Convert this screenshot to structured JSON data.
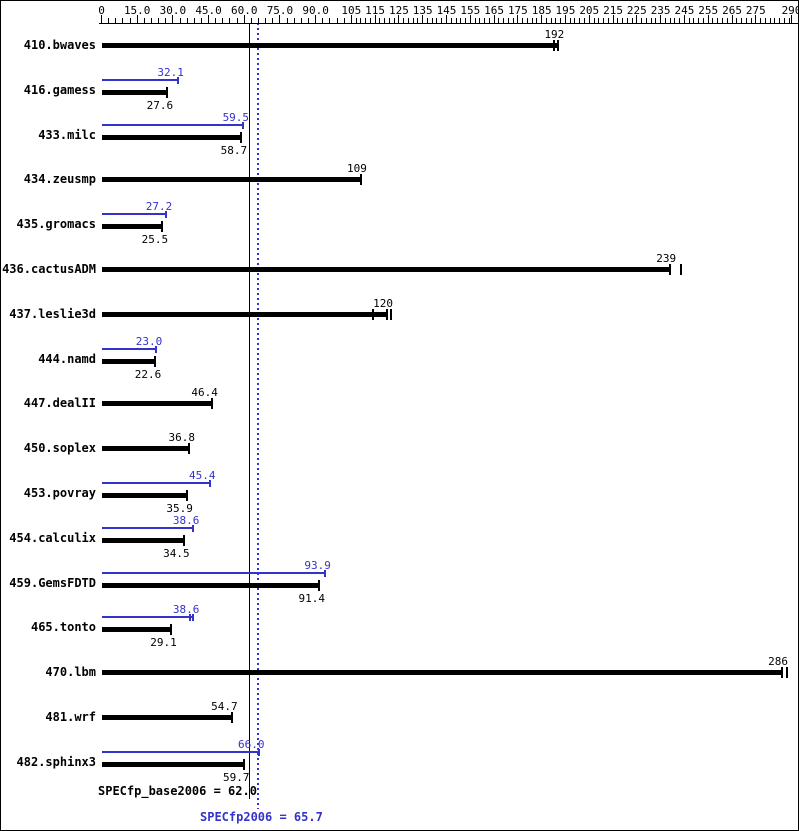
{
  "chart_data": {
    "type": "bar",
    "orientation": "horizontal",
    "title": "",
    "legend": "none",
    "colors": {
      "base": "#000000",
      "peak": "#3333cc",
      "background": "#ffffff"
    },
    "axis": {
      "min": 0,
      "max": 290,
      "position": "top",
      "major_ticks": [
        0,
        15,
        30,
        45,
        60,
        75,
        90,
        105,
        115,
        125,
        135,
        145,
        155,
        165,
        175,
        185,
        195,
        205,
        215,
        225,
        235,
        245,
        255,
        265,
        275,
        290
      ],
      "major_tick_labels": [
        "0",
        "15.0",
        "30.0",
        "45.0",
        "60.0",
        "75.0",
        "90.0",
        "105",
        "115",
        "125",
        "135",
        "145",
        "155",
        "165",
        "175",
        "185",
        "195",
        "205",
        "215",
        "225",
        "235",
        "245",
        "255",
        "265",
        "275",
        "290"
      ]
    },
    "series": [
      {
        "name": "peak",
        "color_key": "peak"
      },
      {
        "name": "base",
        "color_key": "base"
      }
    ],
    "benchmarks": [
      {
        "name": "410.bwaves",
        "base": 192,
        "base_label": "192",
        "peak": null,
        "peak_label": null,
        "base_marks": [
          190,
          192
        ]
      },
      {
        "name": "416.gamess",
        "base": 27.6,
        "base_label": "27.6",
        "peak": 32.1,
        "peak_label": "32.1"
      },
      {
        "name": "433.milc",
        "base": 58.7,
        "base_label": "58.7",
        "peak": 59.5,
        "peak_label": "59.5"
      },
      {
        "name": "434.zeusmp",
        "base": 109,
        "base_label": "109",
        "peak": null,
        "peak_label": null
      },
      {
        "name": "435.gromacs",
        "base": 25.5,
        "base_label": "25.5",
        "peak": 27.2,
        "peak_label": "27.2"
      },
      {
        "name": "436.cactusADM",
        "base": 239,
        "base_label": "239",
        "peak": null,
        "peak_label": null,
        "base_marks": [
          239,
          243.5
        ]
      },
      {
        "name": "437.leslie3d",
        "base": 120,
        "base_label": "120",
        "peak": null,
        "peak_label": null,
        "base_marks": [
          114,
          120,
          121.5
        ]
      },
      {
        "name": "444.namd",
        "base": 22.6,
        "base_label": "22.6",
        "peak": 23.0,
        "peak_label": "23.0"
      },
      {
        "name": "447.dealII",
        "base": 46.4,
        "base_label": "46.4",
        "peak": null,
        "peak_label": null
      },
      {
        "name": "450.soplex",
        "base": 36.8,
        "base_label": "36.8",
        "peak": null,
        "peak_label": null
      },
      {
        "name": "453.povray",
        "base": 35.9,
        "base_label": "35.9",
        "peak": 45.4,
        "peak_label": "45.4"
      },
      {
        "name": "454.calculix",
        "base": 34.5,
        "base_label": "34.5",
        "peak": 38.6,
        "peak_label": "38.6"
      },
      {
        "name": "459.GemsFDTD",
        "base": 91.4,
        "base_label": "91.4",
        "peak": 93.9,
        "peak_label": "93.9"
      },
      {
        "name": "465.tonto",
        "base": 29.1,
        "base_label": "29.1",
        "peak": 38.6,
        "peak_label": "38.6",
        "peak_marks": [
          37.3,
          38.6
        ]
      },
      {
        "name": "470.lbm",
        "base": 286,
        "base_label": "286",
        "peak": null,
        "peak_label": null,
        "base_marks": [
          286,
          288
        ]
      },
      {
        "name": "481.wrf",
        "base": 54.7,
        "base_label": "54.7",
        "peak": null,
        "peak_label": null
      },
      {
        "name": "482.sphinx3",
        "base": 59.7,
        "base_label": "59.7",
        "peak": 66.0,
        "peak_label": "66.0"
      }
    ],
    "base_mean": {
      "value": 62.0,
      "label": "SPECfp_base2006 = 62.0"
    },
    "peak_mean": {
      "value": 65.7,
      "label": "SPECfp2006 = 65.7"
    }
  }
}
